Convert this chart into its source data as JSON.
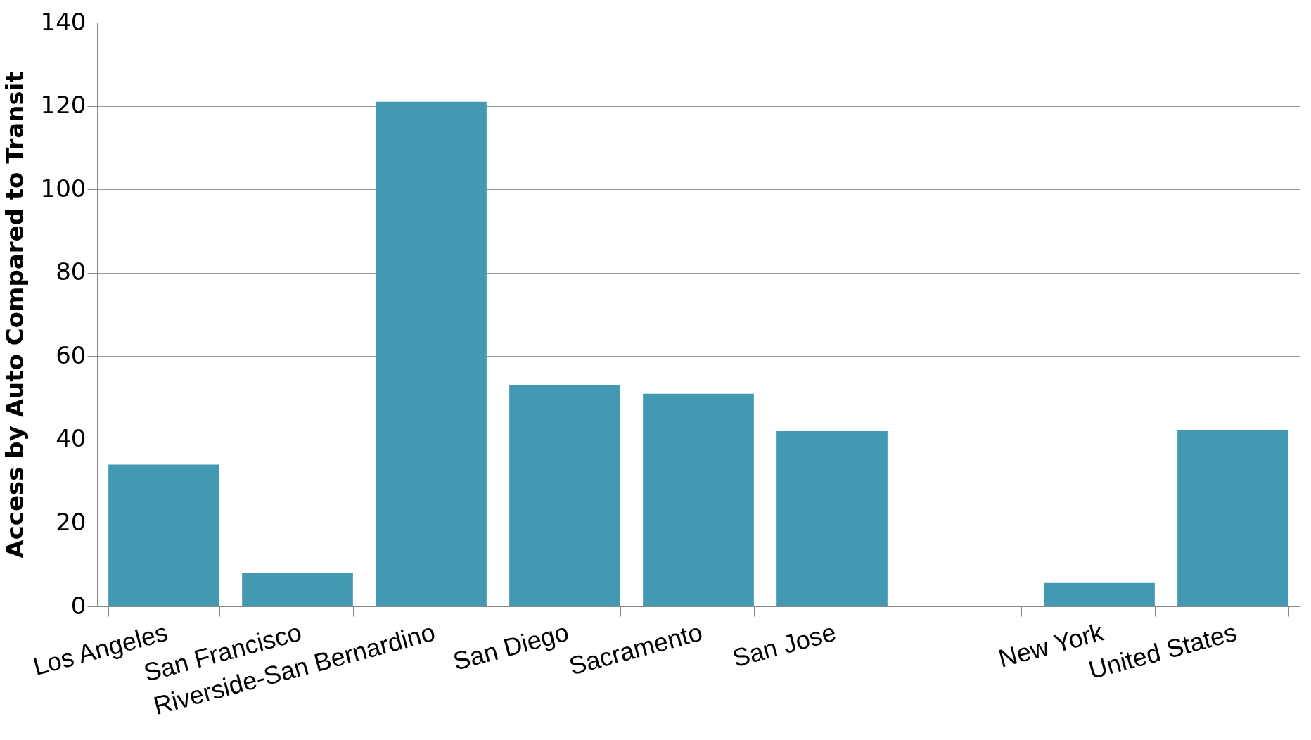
{
  "chart_data": {
    "type": "bar",
    "ylabel": "Access by Auto Compared to Transit",
    "categories": [
      "Los Angeles",
      "San Francisco",
      "Riverside-San Bernardino",
      "San Diego",
      "Sacramento",
      "San Jose",
      null,
      "New York",
      "United States"
    ],
    "values": [
      34,
      8,
      121,
      53,
      51,
      42,
      null,
      5.6,
      42.3
    ],
    "color": "#4399b1",
    "ylim": [
      0,
      140
    ],
    "yticks": [
      0,
      20,
      40,
      60,
      80,
      100,
      120,
      140
    ],
    "grid": "y"
  }
}
